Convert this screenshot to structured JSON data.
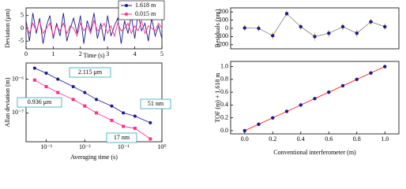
{
  "chart_data": [
    {
      "type": "line",
      "xlabel": "Time (s)",
      "ylabel": "Deviation (μm)",
      "xlim": [
        0,
        5
      ],
      "ylim": [
        -8,
        8
      ],
      "xticks": [
        0,
        1,
        2,
        3,
        4,
        5
      ],
      "yticks": [
        -5,
        0,
        5
      ],
      "legend": "top-right",
      "x": [
        0,
        0.125,
        0.25,
        0.375,
        0.5,
        0.625,
        0.75,
        0.875,
        1,
        1.125,
        1.25,
        1.375,
        1.5,
        1.625,
        1.75,
        1.875,
        2,
        2.125,
        2.25,
        2.375,
        2.5,
        2.625,
        2.75,
        2.875,
        3,
        3.125,
        3.25,
        3.375,
        3.5,
        3.625,
        3.75,
        3.875,
        4,
        4.125,
        4.25,
        4.375,
        4.5,
        4.625,
        4.75,
        4.875,
        5
      ],
      "series": [
        {
          "name": "1.618 m",
          "color": "#1a1a8c",
          "marker": "circle",
          "values": [
            3,
            -5,
            6,
            -2,
            4,
            -6,
            1,
            5,
            -4,
            2,
            -3,
            6,
            -5,
            0,
            4,
            -2,
            5,
            -6,
            3,
            -1,
            6,
            -4,
            2,
            -5,
            5,
            -3,
            1,
            4,
            -6,
            3,
            -2,
            5,
            -4,
            6,
            -1,
            2,
            -5,
            4,
            -3,
            1,
            -4
          ]
        },
        {
          "name": "0.015 m",
          "color": "#ff2d8a",
          "marker": "square",
          "values": [
            1,
            -2,
            2,
            -1,
            3,
            -2,
            0,
            2,
            -3,
            1,
            -1,
            2,
            -2,
            1,
            0,
            -3,
            2,
            -1,
            1,
            -2,
            3,
            -1,
            0,
            2,
            -2,
            1,
            -3,
            2,
            -1,
            0,
            2,
            -2,
            1,
            -1,
            3,
            -2,
            1,
            0,
            -1,
            2,
            0
          ]
        }
      ]
    },
    {
      "type": "line",
      "xlabel": "Averaging time (s)",
      "ylabel": "Allan deviation (m)",
      "log_x": true,
      "log_y": true,
      "xlim": [
        0.0003,
        1
      ],
      "ylim": [
        1.4e-08,
        3e-06
      ],
      "xticks": [
        {
          "value": 0.001,
          "label": "10⁻³"
        },
        {
          "value": 0.01,
          "label": "10⁻²"
        },
        {
          "value": 0.1,
          "label": "10⁻¹"
        },
        {
          "value": 1,
          "label": "10⁰"
        }
      ],
      "yticks": [
        {
          "value": 1e-07,
          "label": "10⁻⁷"
        },
        {
          "value": 1e-06,
          "label": "10⁻⁶"
        }
      ],
      "x": [
        0.0005,
        0.001,
        0.002,
        0.005,
        0.01,
        0.02,
        0.05,
        0.1,
        0.2,
        0.5
      ],
      "series": [
        {
          "name": "1.618 m",
          "color": "#1a1a8c",
          "marker": "circle",
          "values": [
            2.115e-06,
            1.5e-06,
            1e-06,
            6e-07,
            4e-07,
            2.5e-07,
            1.6e-07,
            1e-07,
            8e-08,
            5.1e-08
          ]
        },
        {
          "name": "0.015 m",
          "color": "#ff2d8a",
          "marker": "square",
          "values": [
            9.36e-07,
            6e-07,
            4e-07,
            2.5e-07,
            1.6e-07,
            1e-07,
            6e-08,
            4e-08,
            3.5e-08,
            1.7e-08
          ]
        }
      ],
      "annotations": [
        "2.115 μm",
        "0.936 μm",
        "51 nm",
        "17 nm"
      ]
    },
    {
      "type": "errorbar",
      "ylabel": "Residuals (nm)",
      "xlim": [
        -0.1,
        1.1
      ],
      "ylim": [
        -250,
        250
      ],
      "yticks": [
        -200,
        -100,
        0,
        100,
        200
      ],
      "color": "#1a1a8c",
      "x": [
        0,
        0.1,
        0.2,
        0.3,
        0.4,
        0.5,
        0.6,
        0.7,
        0.8,
        0.9,
        1.0
      ],
      "values": [
        5,
        0,
        -90,
        180,
        20,
        -100,
        -60,
        20,
        -60,
        80,
        20
      ],
      "errors": [
        40,
        40,
        45,
        35,
        40,
        50,
        45,
        40,
        45,
        40,
        40
      ]
    },
    {
      "type": "scatter",
      "xlabel": "Conventional interferometer (m)",
      "ylabel": "TOF (m) + 1.618 m",
      "xlim": [
        -0.1,
        1.1
      ],
      "ylim": [
        -0.05,
        1.08
      ],
      "xticks": [
        {
          "value": 0,
          "label": "0.0"
        },
        0.2,
        0.4,
        0.6,
        0.8,
        {
          "value": 1,
          "label": "1.0"
        }
      ],
      "yticks": [
        {
          "value": 0,
          "label": "0.0"
        },
        0.2,
        0.4,
        0.6,
        0.8,
        {
          "value": 1,
          "label": "1.0"
        }
      ],
      "color": "#1a1a8c",
      "fit_color": "#ff2020",
      "x": [
        0,
        0.1,
        0.2,
        0.3,
        0.4,
        0.5,
        0.6,
        0.7,
        0.8,
        0.9,
        1.0
      ],
      "values": [
        0,
        0.1,
        0.2,
        0.3,
        0.4,
        0.5,
        0.6,
        0.7,
        0.8,
        0.9,
        1.0
      ]
    }
  ]
}
